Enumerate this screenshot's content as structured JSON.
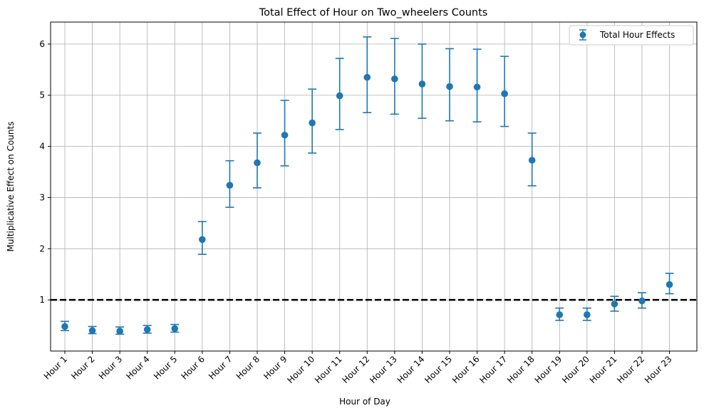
{
  "chart_data": {
    "type": "scatter",
    "title": "Total Effect of Hour on Two_wheelers Counts",
    "xlabel": "Hour of Day",
    "ylabel": "Multiplicative Effect on Counts",
    "categories": [
      "Hour 1",
      "Hour 2",
      "Hour 3",
      "Hour 4",
      "Hour 5",
      "Hour 6",
      "Hour 7",
      "Hour 8",
      "Hour 9",
      "Hour 10",
      "Hour 11",
      "Hour 12",
      "Hour 13",
      "Hour 14",
      "Hour 15",
      "Hour 16",
      "Hour 17",
      "Hour 18",
      "Hour 19",
      "Hour 20",
      "Hour 21",
      "Hour 22",
      "Hour 23"
    ],
    "series": [
      {
        "name": "Total Hour Effects",
        "color": "#1f77b4",
        "values": [
          0.48,
          0.4,
          0.39,
          0.42,
          0.44,
          2.18,
          3.24,
          3.68,
          4.22,
          4.46,
          4.99,
          5.35,
          5.32,
          5.22,
          5.17,
          5.16,
          5.03,
          3.73,
          0.71,
          0.71,
          0.92,
          0.98,
          1.3
        ],
        "lower": [
          0.4,
          0.34,
          0.33,
          0.35,
          0.37,
          1.89,
          2.81,
          3.19,
          3.62,
          3.87,
          4.33,
          4.66,
          4.63,
          4.55,
          4.5,
          4.48,
          4.39,
          3.23,
          0.6,
          0.6,
          0.78,
          0.84,
          1.12
        ],
        "upper": [
          0.58,
          0.48,
          0.47,
          0.5,
          0.52,
          2.53,
          3.72,
          4.26,
          4.9,
          5.12,
          5.72,
          6.14,
          6.11,
          6.0,
          5.91,
          5.9,
          5.76,
          4.26,
          0.84,
          0.84,
          1.07,
          1.14,
          1.52
        ]
      }
    ],
    "reference_line": 1,
    "ylim": [
      0,
      6.43
    ],
    "yticks": [
      1,
      2,
      3,
      4,
      5,
      6
    ],
    "grid": true,
    "legend_position": "top-right"
  }
}
